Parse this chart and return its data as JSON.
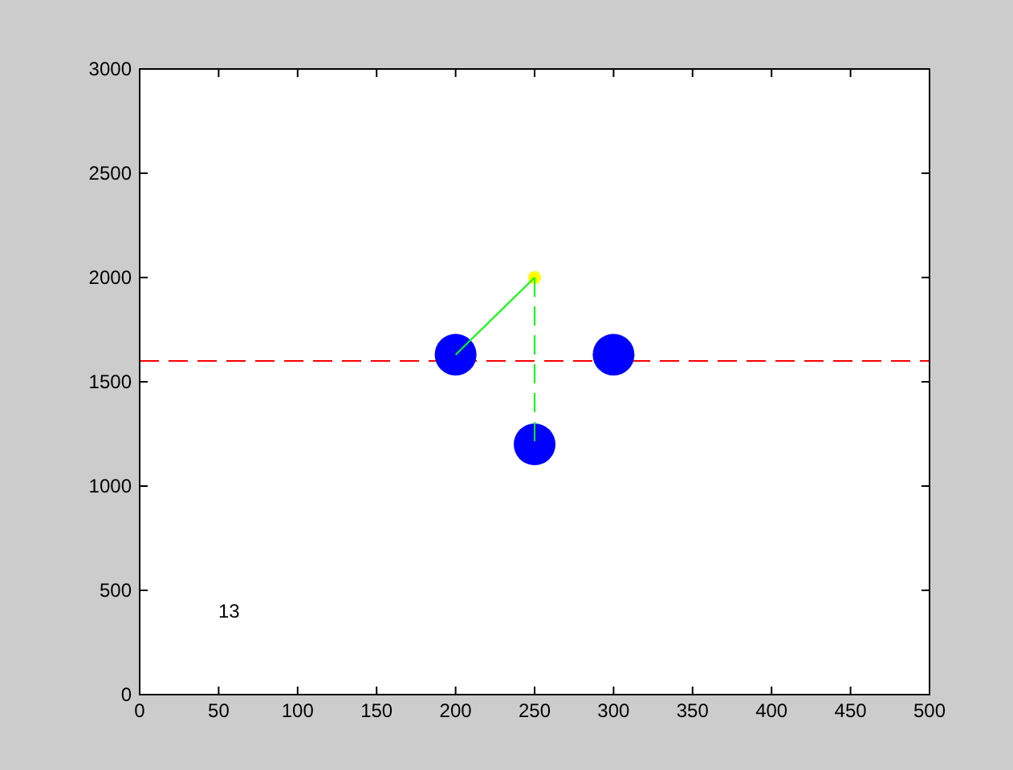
{
  "chart_data": {
    "type": "scatter",
    "xlim": [
      0,
      500
    ],
    "ylim": [
      0,
      3000
    ],
    "xticks": [
      0,
      50,
      100,
      150,
      200,
      250,
      300,
      350,
      400,
      450,
      500
    ],
    "yticks": [
      0,
      500,
      1000,
      1500,
      2000,
      2500,
      3000
    ],
    "grid": false,
    "marker": "circle",
    "series": [
      {
        "type": "line",
        "color": "#00ff00",
        "x": [
          250,
          200
        ],
        "values": [
          2000,
          1630
        ],
        "line_style": "solid",
        "marker": "none"
      },
      {
        "type": "line",
        "color": "#00ff00",
        "x": [
          250,
          250
        ],
        "values": [
          2000,
          1200
        ],
        "line_style": "dashed",
        "marker": "none"
      },
      {
        "color": "#0000ff",
        "x": [
          200,
          300,
          250
        ],
        "values": [
          1630,
          1630,
          1200
        ]
      },
      {
        "color": "#ffff00",
        "x": [
          250
        ],
        "values": [
          2000
        ]
      }
    ],
    "ref_lines": [
      {
        "axis": "y",
        "value": 1600,
        "color": "#ff0000",
        "line_style": "dashed"
      }
    ],
    "annotations": [
      "13"
    ]
  }
}
